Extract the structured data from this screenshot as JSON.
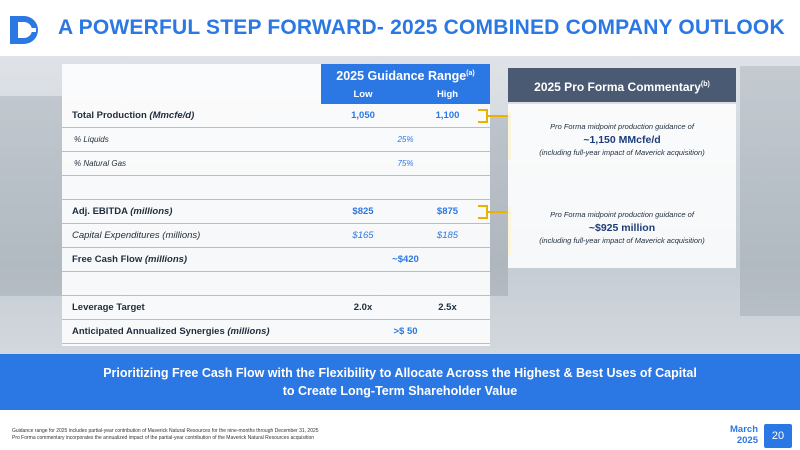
{
  "header": {
    "title": "A POWERFUL STEP FORWARD- 2025 COMBINED COMPANY OUTLOOK",
    "logo_icon": "company-logo-icon",
    "accent_color": "#2B78E4"
  },
  "guidance": {
    "title": "2025 Guidance Range",
    "title_note": "(a)",
    "low_label": "Low",
    "high_label": "High"
  },
  "rows": {
    "total_production": {
      "label": "Total Production",
      "unit": "(Mmcfe/d)",
      "low": "1,050",
      "high": "1,100"
    },
    "liquids": {
      "label": "% Liquids",
      "value": "25%"
    },
    "natural_gas": {
      "label": "% Natural Gas",
      "value": "75%"
    },
    "ebitda": {
      "label": "Adj. EBITDA",
      "unit": "(millions)",
      "low": "$825",
      "high": "$875"
    },
    "capex": {
      "label": "Capital Expenditures (millions)",
      "low": "$165",
      "high": "$185"
    },
    "fcf": {
      "label": "Free Cash Flow",
      "unit": "(millions)",
      "value": "~$420"
    },
    "leverage": {
      "label": "Leverage Target",
      "low": "2.0x",
      "high": "2.5x"
    },
    "synergies": {
      "label": "Anticipated Annualized Synergies",
      "unit": "(millions)",
      "value": ">$ 50"
    }
  },
  "commentary": {
    "title": "2025 Pro Forma Commentary",
    "title_note": "(b)",
    "production": {
      "line1": "Pro Forma midpoint production guidance of",
      "line2": "~1,150 MMcfe/d",
      "line3": "(including full-year impact of Maverick acquisition)"
    },
    "ebitda": {
      "line1": "Pro Forma midpoint production guidance of",
      "line2": "~$925 million",
      "line3": "(including full-year impact of Maverick acquisition)"
    }
  },
  "banner": {
    "line1": "Prioritizing Free Cash Flow with the Flexibility to Allocate Across the Highest & Best Uses of Capital",
    "line2": "to Create Long-Term Shareholder Value"
  },
  "footer": {
    "note_a": "Guidance range for 2025 includes partial-year contribution of Maverick Natural Resources for the nine-months through December 31, 2025",
    "note_b": "Pro Forma commentary incorporates the annualized impact of the partial-year contribution of the Maverick Natural Resources acquisition",
    "month": "March",
    "year": "2025",
    "page": "20"
  }
}
